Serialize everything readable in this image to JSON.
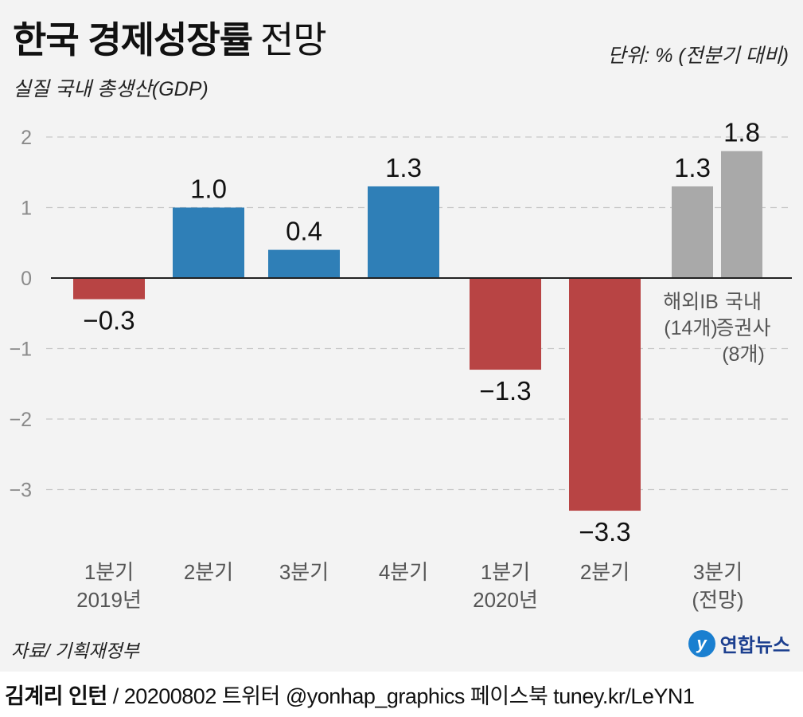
{
  "header": {
    "title_bold": "한국 경제성장률",
    "title_light": "전망",
    "subtitle": "실질 국내 총생산(GDP)",
    "unit": "단위: % (전분기 대비)"
  },
  "colors": {
    "positive": "#2f7fb7",
    "negative": "#b84444",
    "forecast": "#a9a9a9",
    "background": "#f3f3f3"
  },
  "chart_data": {
    "type": "bar",
    "title": "한국 경제성장률 전망",
    "subtitle": "실질 국내 총생산(GDP)",
    "ylabel": "단위: % (전분기 대비)",
    "ylim": [
      -3.5,
      2.2
    ],
    "yticks": [
      2,
      1,
      0,
      -1,
      -2,
      -3
    ],
    "ytick_labels": [
      "2",
      "1",
      "0",
      "−1",
      "−2",
      "−3"
    ],
    "grid": true,
    "categories": [
      {
        "line1": "1분기",
        "line2": "2019년"
      },
      {
        "line1": "2분기",
        "line2": ""
      },
      {
        "line1": "3분기",
        "line2": ""
      },
      {
        "line1": "4분기",
        "line2": ""
      },
      {
        "line1": "1분기",
        "line2": "2020년"
      },
      {
        "line1": "2분기",
        "line2": ""
      },
      {
        "line1": "3분기",
        "line2": "(전망)"
      }
    ],
    "bars": [
      {
        "category_index": 0,
        "value": -0.3,
        "label": "−0.3",
        "kind": "negative"
      },
      {
        "category_index": 1,
        "value": 1.0,
        "label": "1.0",
        "kind": "positive"
      },
      {
        "category_index": 2,
        "value": 0.4,
        "label": "0.4",
        "kind": "positive"
      },
      {
        "category_index": 3,
        "value": 1.3,
        "label": "1.3",
        "kind": "positive"
      },
      {
        "category_index": 4,
        "value": -1.3,
        "label": "−1.3",
        "kind": "negative"
      },
      {
        "category_index": 5,
        "value": -3.3,
        "label": "−3.3",
        "kind": "negative"
      },
      {
        "category_index": 6,
        "value": 1.3,
        "label": "1.3",
        "kind": "forecast",
        "sublabel": [
          "해외IB",
          "(14개)"
        ]
      },
      {
        "category_index": 6,
        "value": 1.8,
        "label": "1.8",
        "kind": "forecast",
        "sublabel": [
          "국내",
          "증권사",
          "(8개)"
        ]
      }
    ]
  },
  "footer": {
    "source": "자료/ 기획재정부",
    "logo_text": "연합뉴스",
    "logo_mark": "y",
    "author": "김계리 인턴",
    "credit_rest": " / 20200802  트위터 @yonhap_graphics  페이스북 tuney.kr/LeYN1"
  }
}
